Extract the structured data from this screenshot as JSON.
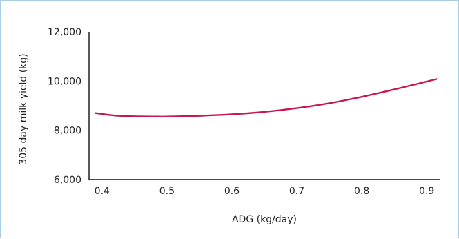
{
  "chart_data": {
    "type": "line",
    "xlabel": "ADG (kg/day)",
    "ylabel": "305 day milk yield (kg)",
    "xlim": [
      0.38,
      0.92
    ],
    "ylim": [
      6000,
      12000
    ],
    "x_ticks": [
      0.4,
      0.5,
      0.6,
      0.7,
      0.8,
      0.9
    ],
    "x_tick_labels": [
      "0.4",
      "0.5",
      "0.6",
      "0.7",
      "0.8",
      "0.9"
    ],
    "y_ticks": [
      6000,
      8000,
      10000,
      12000
    ],
    "y_tick_labels": [
      "6,000",
      "8,000",
      "10,000",
      "12,000"
    ],
    "grid": false,
    "series": [
      {
        "color": "#c8174f",
        "x": [
          0.39,
          0.42,
          0.45,
          0.48,
          0.5,
          0.55,
          0.6,
          0.65,
          0.7,
          0.75,
          0.8,
          0.85,
          0.9,
          0.915
        ],
        "y": [
          8700,
          8600,
          8570,
          8560,
          8560,
          8590,
          8650,
          8750,
          8900,
          9100,
          9360,
          9660,
          9980,
          10080
        ]
      }
    ]
  }
}
